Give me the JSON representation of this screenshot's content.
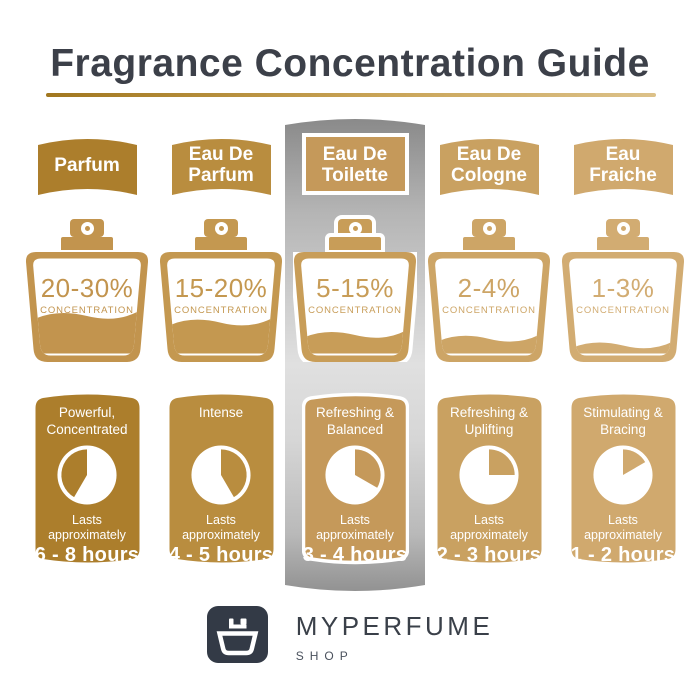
{
  "title": "Fragrance Concentration Guide",
  "columns": [
    {
      "name": "Parfum",
      "concentration": "20-30%",
      "concentration_label": "CONCENTRATION",
      "character": "Powerful,\nConcentrated",
      "lasts": "Lasts\napproximately",
      "duration": "6 - 8 hours",
      "color": "#AC7E2C",
      "bottle_color": "#C2944E",
      "liquid_level": 0.41,
      "clock_start": 210,
      "clock_end": 360,
      "highlighted": false
    },
    {
      "name": "Eau De\nParfum",
      "concentration": "15-20%",
      "concentration_label": "CONCENTRATION",
      "character": "Intense",
      "lasts": "Lasts\napproximately",
      "duration": "4 - 5 hours",
      "color": "#B98D3F",
      "bottle_color": "#C49850",
      "liquid_level": 0.34,
      "clock_start": 0,
      "clock_end": 150,
      "highlighted": false
    },
    {
      "name": "Eau De\nToilette",
      "concentration": "5-15%",
      "concentration_label": "CONCENTRATION",
      "character": "Refreshing &\nBalanced",
      "lasts": "Lasts\napproximately",
      "duration": "3 - 4 hours",
      "color": "#C5995A",
      "bottle_color": "#C89D58",
      "liquid_level": 0.21,
      "clock_start": 0,
      "clock_end": 120,
      "highlighted": true
    },
    {
      "name": "Eau De\nCologne",
      "concentration": "2-4%",
      "concentration_label": "CONCENTRATION",
      "character": "Refreshing &\nUplifting",
      "lasts": "Lasts\napproximately",
      "duration": "2 - 3 hours",
      "color": "#C9A161",
      "bottle_color": "#CDA566",
      "liquid_level": 0.17,
      "clock_start": 0,
      "clock_end": 90,
      "highlighted": false
    },
    {
      "name": "Eau\nFraiche",
      "concentration": "1-3%",
      "concentration_label": "CONCENTRATION",
      "character": "Stimulating &\nBracing",
      "lasts": "Lasts\napproximately",
      "duration": "1 - 2 hours",
      "color": "#D0A96E",
      "bottle_color": "#D2AC72",
      "liquid_level": 0.1,
      "clock_start": 0,
      "clock_end": 60,
      "highlighted": false
    }
  ],
  "footer": {
    "brand": "MYPERFUME",
    "brand_sub": "SHOP"
  },
  "theme": {
    "title_color": "#3C4049",
    "underline_from": "#A1771F",
    "underline_to": "#DCC189",
    "strip_grays": [
      "#8A8A8A",
      "#B5B5B5",
      "#E0E0E0",
      "#D6D6D6",
      "#B9B9B9",
      "#929292"
    ],
    "logo_bg": "#333A46",
    "brand_color": "#3A4049",
    "sub_color": "#4A515D"
  }
}
